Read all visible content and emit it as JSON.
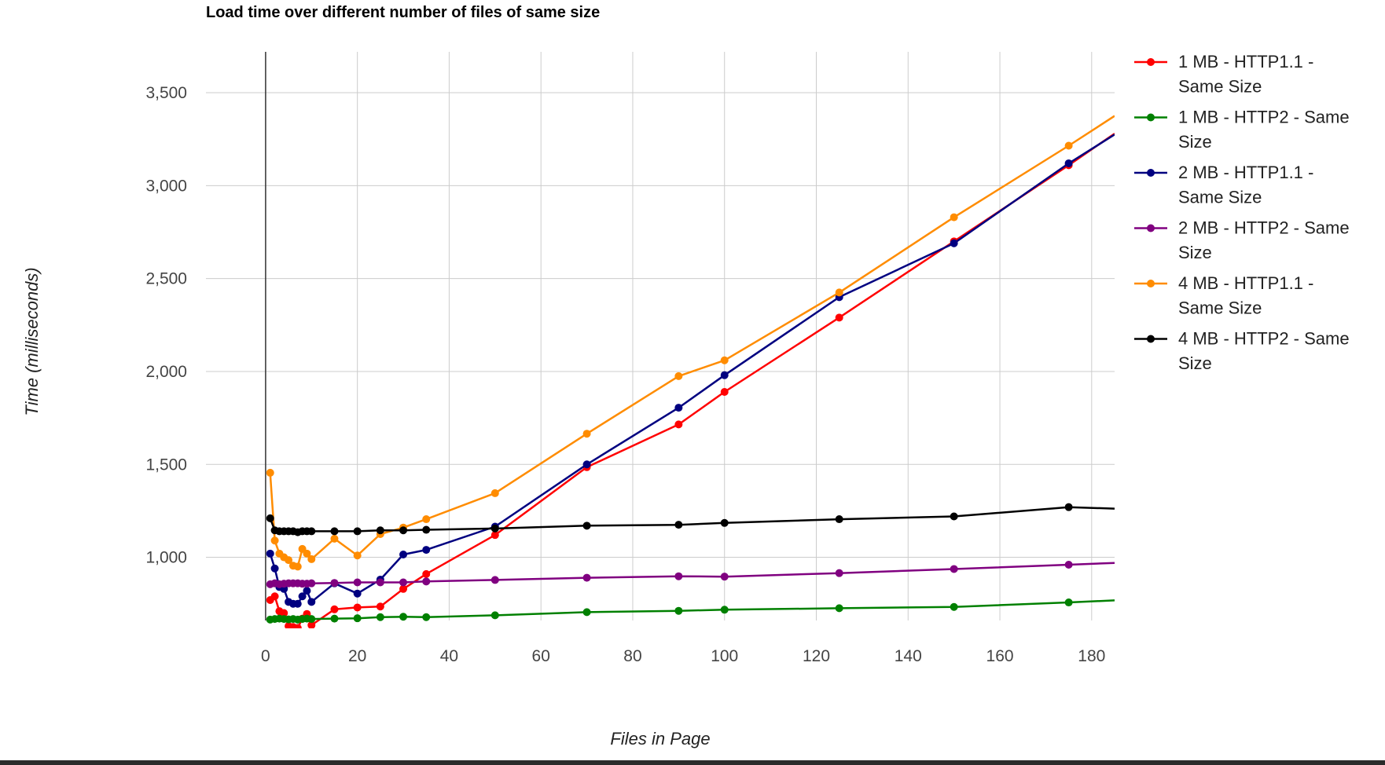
{
  "chart_data": {
    "type": "line",
    "title": "Load time over different number of files of same size",
    "xlabel": "Files in Page",
    "ylabel": "Time (milliseconds)",
    "xlim": [
      -13,
      185
    ],
    "ylim": [
      660,
      3720
    ],
    "x_ticks": [
      0,
      20,
      40,
      60,
      80,
      100,
      120,
      140,
      160,
      180
    ],
    "y_ticks": [
      1000,
      1500,
      2000,
      2500,
      3000,
      3500
    ],
    "x_tick_labels": [
      "0",
      "20",
      "40",
      "60",
      "80",
      "100",
      "120",
      "140",
      "160",
      "180"
    ],
    "y_tick_labels": [
      "1,000",
      "1,500",
      "2,000",
      "2,500",
      "3,000",
      "3,500"
    ],
    "grid": true,
    "legend_position": "right",
    "series": [
      {
        "name": "1 MB - HTTP1.1 - Same Size",
        "legend_lines": [
          "1 MB - HTTP1.1 -",
          "Same Size"
        ],
        "color": "#ff0000",
        "points": [
          [
            1,
            770
          ],
          [
            2,
            790
          ],
          [
            3,
            710
          ],
          [
            4,
            700
          ],
          [
            5,
            630
          ],
          [
            6,
            625
          ],
          [
            7,
            620
          ],
          [
            8,
            670
          ],
          [
            9,
            695
          ],
          [
            10,
            635
          ],
          [
            15,
            720
          ],
          [
            20,
            730
          ],
          [
            25,
            735
          ],
          [
            30,
            830
          ],
          [
            35,
            910
          ],
          [
            50,
            1120
          ],
          [
            70,
            1485
          ],
          [
            90,
            1715
          ],
          [
            100,
            1890
          ],
          [
            125,
            2290
          ],
          [
            150,
            2700
          ],
          [
            175,
            3110
          ],
          [
            185,
            3280
          ]
        ]
      },
      {
        "name": "1 MB - HTTP2 - Same Size",
        "legend_lines": [
          "1 MB - HTTP2 - Same",
          "Size"
        ],
        "color": "#008000",
        "points": [
          [
            1,
            665
          ],
          [
            2,
            668
          ],
          [
            3,
            670
          ],
          [
            4,
            668
          ],
          [
            5,
            666
          ],
          [
            6,
            668
          ],
          [
            7,
            665
          ],
          [
            8,
            668
          ],
          [
            9,
            670
          ],
          [
            10,
            668
          ],
          [
            15,
            670
          ],
          [
            20,
            672
          ],
          [
            25,
            678
          ],
          [
            30,
            680
          ],
          [
            35,
            678
          ],
          [
            50,
            688
          ],
          [
            70,
            705
          ],
          [
            90,
            712
          ],
          [
            100,
            718
          ],
          [
            125,
            726
          ],
          [
            150,
            733
          ],
          [
            175,
            757
          ],
          [
            185,
            768
          ]
        ]
      },
      {
        "name": "2 MB - HTTP1.1 - Same Size",
        "legend_lines": [
          "2 MB - HTTP1.1 -",
          "Same Size"
        ],
        "color": "#000080",
        "points": [
          [
            1,
            1020
          ],
          [
            2,
            940
          ],
          [
            3,
            840
          ],
          [
            4,
            830
          ],
          [
            5,
            760
          ],
          [
            6,
            750
          ],
          [
            7,
            750
          ],
          [
            8,
            790
          ],
          [
            9,
            820
          ],
          [
            10,
            760
          ],
          [
            15,
            860
          ],
          [
            20,
            805
          ],
          [
            25,
            880
          ],
          [
            30,
            1015
          ],
          [
            35,
            1040
          ],
          [
            50,
            1165
          ],
          [
            70,
            1500
          ],
          [
            90,
            1805
          ],
          [
            100,
            1980
          ],
          [
            125,
            2400
          ],
          [
            150,
            2690
          ],
          [
            175,
            3120
          ],
          [
            185,
            3275
          ]
        ]
      },
      {
        "name": "2 MB - HTTP2 - Same Size",
        "legend_lines": [
          "2 MB - HTTP2 - Same",
          "Size"
        ],
        "color": "#800080",
        "points": [
          [
            1,
            855
          ],
          [
            2,
            860
          ],
          [
            3,
            855
          ],
          [
            4,
            858
          ],
          [
            5,
            860
          ],
          [
            6,
            860
          ],
          [
            7,
            860
          ],
          [
            8,
            858
          ],
          [
            9,
            858
          ],
          [
            10,
            860
          ],
          [
            15,
            862
          ],
          [
            20,
            865
          ],
          [
            25,
            865
          ],
          [
            30,
            865
          ],
          [
            35,
            870
          ],
          [
            50,
            878
          ],
          [
            70,
            890
          ],
          [
            90,
            898
          ],
          [
            100,
            896
          ],
          [
            125,
            915
          ],
          [
            150,
            937
          ],
          [
            175,
            960
          ],
          [
            185,
            970
          ]
        ]
      },
      {
        "name": "4 MB - HTTP1.1 - Same Size",
        "legend_lines": [
          "4 MB - HTTP1.1 -",
          "Same Size"
        ],
        "color": "#ff8c00",
        "points": [
          [
            1,
            1455
          ],
          [
            2,
            1090
          ],
          [
            3,
            1020
          ],
          [
            4,
            1000
          ],
          [
            5,
            985
          ],
          [
            6,
            955
          ],
          [
            7,
            950
          ],
          [
            8,
            1045
          ],
          [
            9,
            1020
          ],
          [
            10,
            990
          ],
          [
            15,
            1100
          ],
          [
            20,
            1010
          ],
          [
            25,
            1125
          ],
          [
            30,
            1160
          ],
          [
            35,
            1205
          ],
          [
            50,
            1345
          ],
          [
            70,
            1665
          ],
          [
            90,
            1975
          ],
          [
            100,
            2060
          ],
          [
            125,
            2425
          ],
          [
            150,
            2830
          ],
          [
            175,
            3215
          ],
          [
            185,
            3375
          ]
        ]
      },
      {
        "name": "4 MB - HTTP2 - Same Size",
        "legend_lines": [
          "4 MB - HTTP2 - Same",
          "Size"
        ],
        "color": "#000000",
        "points": [
          [
            1,
            1210
          ],
          [
            2,
            1145
          ],
          [
            3,
            1140
          ],
          [
            4,
            1140
          ],
          [
            5,
            1140
          ],
          [
            6,
            1140
          ],
          [
            7,
            1135
          ],
          [
            8,
            1140
          ],
          [
            9,
            1140
          ],
          [
            10,
            1140
          ],
          [
            15,
            1140
          ],
          [
            20,
            1140
          ],
          [
            25,
            1145
          ],
          [
            30,
            1145
          ],
          [
            35,
            1148
          ],
          [
            50,
            1155
          ],
          [
            70,
            1170
          ],
          [
            90,
            1175
          ],
          [
            100,
            1185
          ],
          [
            125,
            1205
          ],
          [
            150,
            1220
          ],
          [
            175,
            1270
          ],
          [
            185,
            1262
          ]
        ]
      }
    ]
  }
}
